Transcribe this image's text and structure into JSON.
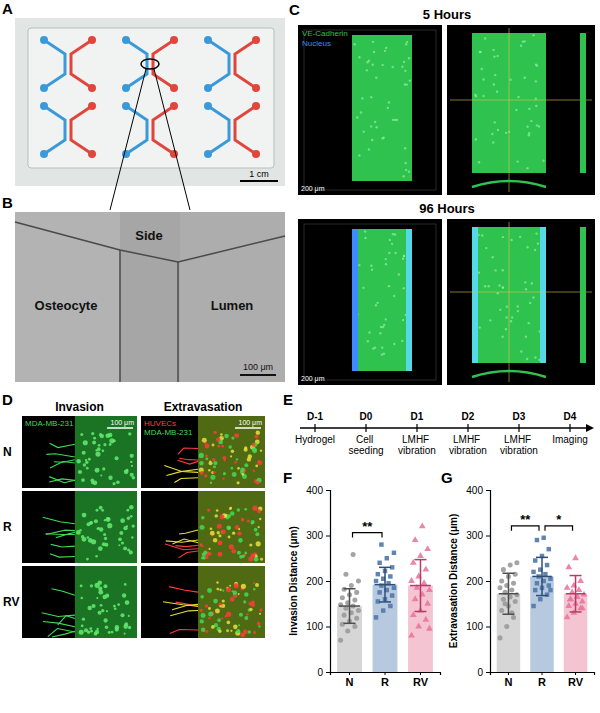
{
  "figure": {
    "panel_letters": [
      "A",
      "B",
      "C",
      "D",
      "E",
      "F",
      "G"
    ],
    "A": {
      "scale_bar": "1 cm"
    },
    "B": {
      "labels": [
        "Side",
        "Osteocyte",
        "Lumen"
      ],
      "scale_bar": "100 μm"
    },
    "C": {
      "times": [
        "5 Hours",
        "96 Hours"
      ],
      "stains": [
        {
          "label": "VE-Cadherin",
          "color": "#2fc24f"
        },
        {
          "label": "Nucleus",
          "color": "#3d8bff"
        }
      ],
      "scale_bar": "200 μm"
    },
    "D": {
      "columns": [
        "Invasion",
        "Extravasation"
      ],
      "rows": [
        "N",
        "R",
        "RV"
      ],
      "invasion_stains": [
        {
          "label": "MDA-MB-231",
          "color": "#3fdc55"
        }
      ],
      "extravasation_stains": [
        {
          "label": "HUVECs",
          "color": "#ff3b3b"
        },
        {
          "label": "MDA-MB-231",
          "color": "#3fdc55"
        }
      ],
      "scale_bar": "100 μm"
    },
    "E": {
      "days": [
        "D-1",
        "D0",
        "D1",
        "D2",
        "D3",
        "D4"
      ],
      "events": [
        "Hydrogel",
        "Cell seeding",
        "LMHF vibration",
        "LMHF vibration",
        "LMHF vibration",
        "Imaging"
      ]
    }
  },
  "chart_data": [
    {
      "type": "bar",
      "y_label": "Invasion Distance (μm)",
      "categories": [
        "N",
        "R",
        "RV"
      ],
      "values": [
        145,
        192,
        190
      ],
      "errors": [
        38,
        38,
        57
      ],
      "points": [
        [
          70,
          90,
          100,
          105,
          112,
          118,
          125,
          130,
          135,
          140,
          145,
          148,
          152,
          158,
          163,
          170,
          175,
          182,
          190,
          200,
          215,
          258
        ],
        [
          120,
          135,
          145,
          155,
          160,
          168,
          175,
          180,
          185,
          190,
          195,
          200,
          205,
          210,
          215,
          222,
          230,
          240,
          250,
          262,
          280
        ],
        [
          80,
          100,
          115,
          125,
          135,
          150,
          160,
          170,
          180,
          185,
          195,
          200,
          210,
          225,
          240,
          255,
          270,
          290,
          320,
          95
        ]
      ],
      "colors": [
        "#d6d6d6",
        "#b7c9de",
        "#f5c4d3"
      ],
      "ylim": [
        0,
        400
      ],
      "yticks": [
        0,
        100,
        200,
        300,
        400
      ],
      "annotations": [
        {
          "text": "**",
          "between": [
            "N",
            "R"
          ]
        }
      ]
    },
    {
      "type": "bar",
      "y_label": "Extravasation Distance (μm)",
      "categories": [
        "N",
        "R",
        "RV"
      ],
      "values": [
        172,
        210,
        172
      ],
      "errors": [
        45,
        42,
        40
      ],
      "points": [
        [
          75,
          100,
          120,
          135,
          145,
          155,
          160,
          165,
          170,
          175,
          180,
          185,
          190,
          195,
          200,
          210,
          215,
          225,
          235,
          240,
          150,
          130
        ],
        [
          145,
          160,
          170,
          180,
          185,
          190,
          195,
          200,
          205,
          210,
          215,
          220,
          225,
          235,
          245,
          255,
          270,
          290,
          295,
          180
        ],
        [
          120,
          130,
          140,
          145,
          150,
          155,
          160,
          165,
          170,
          175,
          180,
          185,
          190,
          200,
          230,
          250,
          140,
          160
        ]
      ],
      "colors": [
        "#d6d6d6",
        "#b7c9de",
        "#f5c4d3"
      ],
      "ylim": [
        0,
        400
      ],
      "yticks": [
        0,
        100,
        200,
        300,
        400
      ],
      "annotations": [
        {
          "text": "**",
          "between": [
            "N",
            "R"
          ]
        },
        {
          "text": "*",
          "between": [
            "R",
            "RV"
          ]
        }
      ]
    }
  ]
}
